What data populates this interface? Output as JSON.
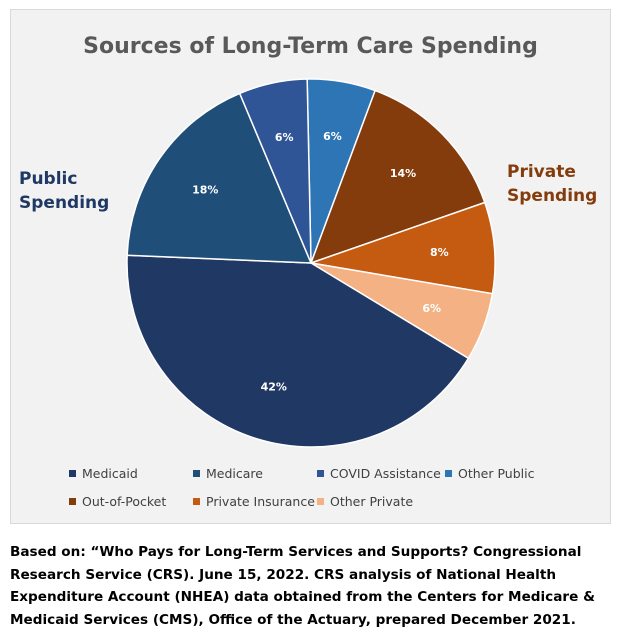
{
  "chart_data": {
    "type": "pie",
    "title": "Sources of Long-Term Care Spending",
    "groups": [
      {
        "name": "Public\nSpending",
        "line1": "Public",
        "line2": "Spending",
        "color": "#1f3864"
      },
      {
        "name": "Private\nSpending",
        "line1": "Private",
        "line2": "Spending",
        "color": "#843c0c"
      }
    ],
    "slices": [
      {
        "label": "Medicaid",
        "value": 42,
        "display": "42%",
        "color": "#203864"
      },
      {
        "label": "Medicare",
        "value": 18,
        "display": "18%",
        "color": "#1f4e79"
      },
      {
        "label": "COVID Assistance",
        "value": 6,
        "display": "6%",
        "color": "#2f5597"
      },
      {
        "label": "Other Public",
        "value": 6,
        "display": "6%",
        "color": "#2e75b6"
      },
      {
        "label": "Out-of-Pocket",
        "value": 14,
        "display": "14%",
        "color": "#843c0c"
      },
      {
        "label": "Private Insurance",
        "value": 8,
        "display": "8%",
        "color": "#c55a11"
      },
      {
        "label": "Other Private",
        "value": 6,
        "display": "6%",
        "color": "#f4b183"
      }
    ],
    "legend_placement": "bottom"
  },
  "source_text": "Based on: “Who Pays for Long-Term Services and Supports? Congressional Research Service (CRS). June 15, 2022. CRS analysis of National Health Expenditure Account (NHEA) data obtained from the Centers for Medicare & Medicaid Services (CMS), Office of the Actuary, prepared December 2021."
}
